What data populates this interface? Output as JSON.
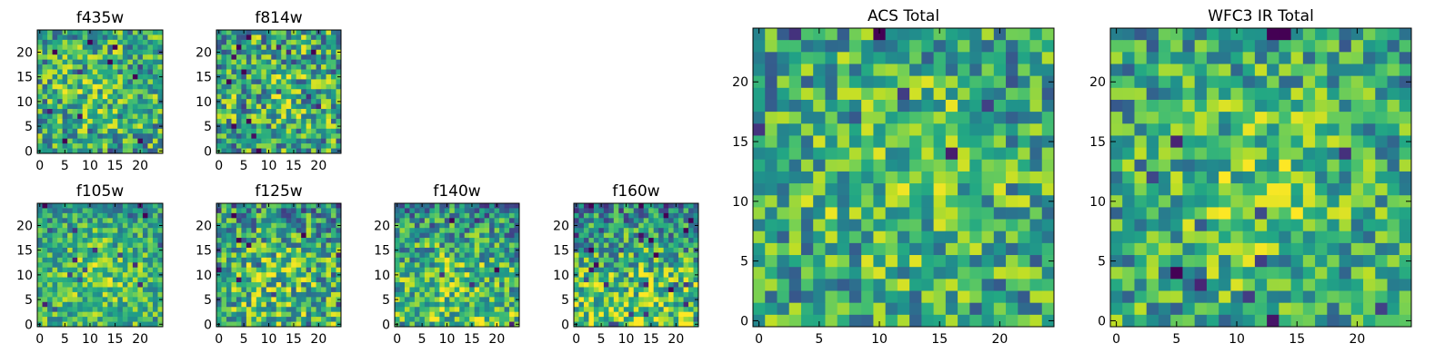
{
  "figure": {
    "title": ""
  },
  "chart_data": [
    {
      "type": "heatmap",
      "title": "f435w",
      "x_ticks": [
        "0",
        "5",
        "10",
        "15",
        "20"
      ],
      "y_ticks": [
        "0",
        "5",
        "10",
        "15",
        "20"
      ],
      "xlim": [
        -0.5,
        24.5
      ],
      "ylim": [
        -0.5,
        24.5
      ],
      "grid": false,
      "colormap": "viridis",
      "grid_size": [
        25,
        25
      ],
      "seed": 11,
      "center_bias": 0.15,
      "bottom_bias": 0.0,
      "contrast": 0.9
    },
    {
      "type": "heatmap",
      "title": "f814w",
      "x_ticks": [
        "0",
        "5",
        "10",
        "15",
        "20"
      ],
      "y_ticks": [
        "0",
        "5",
        "10",
        "15",
        "20"
      ],
      "xlim": [
        -0.5,
        24.5
      ],
      "ylim": [
        -0.5,
        24.5
      ],
      "grid": false,
      "colormap": "viridis",
      "grid_size": [
        25,
        25
      ],
      "seed": 23,
      "center_bias": 0.1,
      "bottom_bias": 0.0,
      "contrast": 1.0
    },
    {
      "type": "heatmap",
      "title": "f105w",
      "x_ticks": [
        "0",
        "5",
        "10",
        "15",
        "20"
      ],
      "y_ticks": [
        "0",
        "5",
        "10",
        "15",
        "20"
      ],
      "xlim": [
        -0.5,
        24.5
      ],
      "ylim": [
        -0.5,
        24.5
      ],
      "grid": false,
      "colormap": "viridis",
      "grid_size": [
        25,
        25
      ],
      "seed": 37,
      "center_bias": 0.25,
      "bottom_bias": 0.15,
      "contrast": 0.7
    },
    {
      "type": "heatmap",
      "title": "f125w",
      "x_ticks": [
        "0",
        "5",
        "10",
        "15",
        "20"
      ],
      "y_ticks": [
        "0",
        "5",
        "10",
        "15",
        "20"
      ],
      "xlim": [
        -0.5,
        24.5
      ],
      "ylim": [
        -0.5,
        24.5
      ],
      "grid": false,
      "colormap": "viridis",
      "grid_size": [
        25,
        25
      ],
      "seed": 41,
      "center_bias": 0.2,
      "bottom_bias": 0.2,
      "contrast": 0.95
    },
    {
      "type": "heatmap",
      "title": "f140w",
      "x_ticks": [
        "0",
        "5",
        "10",
        "15",
        "20"
      ],
      "y_ticks": [
        "0",
        "5",
        "10",
        "15",
        "20"
      ],
      "xlim": [
        -0.5,
        24.5
      ],
      "ylim": [
        -0.5,
        24.5
      ],
      "grid": false,
      "colormap": "viridis",
      "grid_size": [
        25,
        25
      ],
      "seed": 53,
      "center_bias": 0.15,
      "bottom_bias": 0.35,
      "contrast": 0.9
    },
    {
      "type": "heatmap",
      "title": "f160w",
      "x_ticks": [
        "0",
        "5",
        "10",
        "15",
        "20"
      ],
      "y_ticks": [
        "0",
        "5",
        "10",
        "15",
        "20"
      ],
      "xlim": [
        -0.5,
        24.5
      ],
      "ylim": [
        -0.5,
        24.5
      ],
      "grid": false,
      "colormap": "viridis",
      "grid_size": [
        25,
        25
      ],
      "seed": 67,
      "center_bias": 0.05,
      "bottom_bias": 0.5,
      "contrast": 0.9
    },
    {
      "type": "heatmap",
      "title": "ACS Total",
      "x_ticks": [
        "0",
        "5",
        "10",
        "15",
        "20"
      ],
      "y_ticks": [
        "0",
        "5",
        "10",
        "15",
        "20"
      ],
      "xlim": [
        -0.5,
        24.5
      ],
      "ylim": [
        -0.5,
        24.5
      ],
      "grid": false,
      "colormap": "viridis",
      "grid_size": [
        25,
        25
      ],
      "seed": 79,
      "center_bias": 0.2,
      "bottom_bias": 0.0,
      "contrast": 0.85
    },
    {
      "type": "heatmap",
      "title": "WFC3 IR Total",
      "x_ticks": [
        "0",
        "5",
        "10",
        "15",
        "20"
      ],
      "y_ticks": [
        "0",
        "5",
        "10",
        "15",
        "20"
      ],
      "xlim": [
        -0.5,
        24.5
      ],
      "ylim": [
        -0.5,
        24.5
      ],
      "grid": false,
      "colormap": "viridis",
      "grid_size": [
        25,
        25
      ],
      "seed": 97,
      "center_bias": 0.25,
      "bottom_bias": 0.05,
      "contrast": 0.8
    }
  ]
}
